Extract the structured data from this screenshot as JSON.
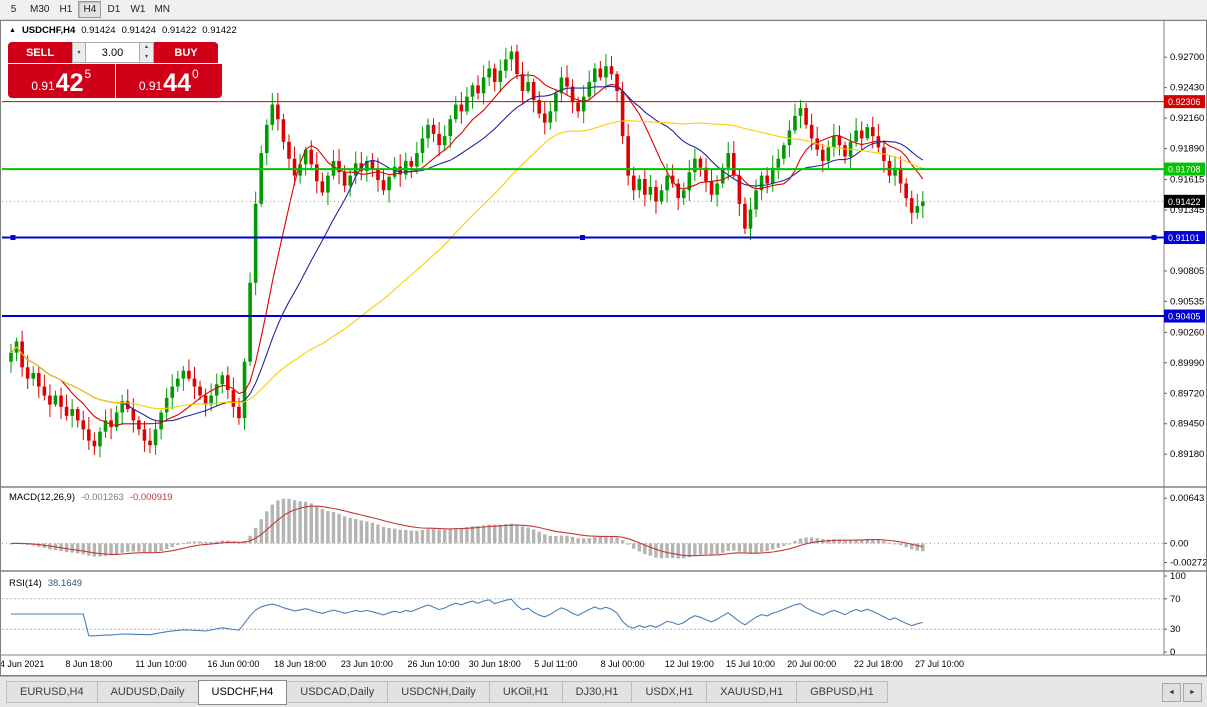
{
  "icons": {
    "triangle-up": "▲",
    "chevron-down": "▾",
    "chevron-up": "▴",
    "scroll-left": "◄",
    "scroll-right": "►"
  },
  "toolbar": {
    "periods": [
      {
        "label": "5",
        "active": false
      },
      {
        "label": "M30",
        "active": false
      },
      {
        "label": "H1",
        "active": false
      },
      {
        "label": "H4",
        "active": true
      },
      {
        "label": "D1",
        "active": false
      },
      {
        "label": "W1",
        "active": false
      },
      {
        "label": "MN",
        "active": false
      }
    ]
  },
  "chart": {
    "title": {
      "symbol": "USDCHF,H4",
      "open": "0.91424",
      "high": "0.91424",
      "low": "0.91422",
      "close": "0.91422"
    },
    "trade_panel": {
      "sell_label": "SELL",
      "buy_label": "BUY",
      "volume": "3.00",
      "sell_price": {
        "small": "0.91",
        "big": "42",
        "sup": "5"
      },
      "buy_price": {
        "small": "0.91",
        "big": "44",
        "sup": "0"
      }
    },
    "colors": {
      "candle_up": "#009b00",
      "candle_down": "#dc0000",
      "ma_fast": "#dd0000",
      "ma_mid": "#26269b",
      "ma_slow": "#ffcc00",
      "macd_hist": "#b4b4b4",
      "macd_signal": "#c03a3a",
      "rsi_line": "#4a7ebb",
      "badge_current": "#000000",
      "current_dotted": "#999999"
    },
    "price_axis": {
      "min": 0.8896,
      "max": 0.9295,
      "ticks": [
        {
          "label": "0.92700",
          "price": 0.927
        },
        {
          "label": "0.92430",
          "price": 0.9243
        },
        {
          "label": "0.92160",
          "price": 0.9216
        },
        {
          "label": "0.91890",
          "price": 0.9189
        },
        {
          "label": "0.91615",
          "price": 0.91615
        },
        {
          "label": "0.91345",
          "price": 0.91345
        },
        {
          "label": "0.91080",
          "price": 0.9108
        },
        {
          "label": "0.90805",
          "price": 0.90805
        },
        {
          "label": "0.90535",
          "price": 0.90535
        },
        {
          "label": "0.90260",
          "price": 0.9026
        },
        {
          "label": "0.89990",
          "price": 0.8999
        },
        {
          "label": "0.89720",
          "price": 0.8972
        },
        {
          "label": "0.89450",
          "price": 0.8945
        },
        {
          "label": "0.89180",
          "price": 0.8918
        }
      ]
    },
    "hlines": [
      {
        "label": "0.92306",
        "price": 0.92306,
        "color": "#d60000",
        "width": 1,
        "selected": false
      },
      {
        "label": "0.91708",
        "price": 0.91708,
        "color": "#00c400",
        "width": 2,
        "selected": false
      },
      {
        "label": "0.91101",
        "price": 0.91101,
        "color": "#0000d4",
        "width": 2,
        "selected": true
      },
      {
        "label": "0.90405",
        "price": 0.90405,
        "color": "#0000d4",
        "width": 2,
        "selected": false
      }
    ],
    "current_price": {
      "label": "0.91422",
      "price": 0.91422
    },
    "candles": {
      "first_open": 0.9,
      "closes": [
        0.9008,
        0.9018,
        0.8995,
        0.8985,
        0.899,
        0.8978,
        0.897,
        0.8962,
        0.897,
        0.896,
        0.8952,
        0.8958,
        0.8948,
        0.894,
        0.893,
        0.8925,
        0.8938,
        0.8948,
        0.8942,
        0.8955,
        0.8965,
        0.8958,
        0.8948,
        0.894,
        0.893,
        0.8926,
        0.894,
        0.8955,
        0.8968,
        0.8978,
        0.8985,
        0.8992,
        0.8985,
        0.8978,
        0.897,
        0.8962,
        0.897,
        0.898,
        0.8988,
        0.8975,
        0.896,
        0.895,
        0.9,
        0.907,
        0.914,
        0.9185,
        0.921,
        0.9228,
        0.9215,
        0.9195,
        0.918,
        0.9165,
        0.9175,
        0.9188,
        0.9175,
        0.916,
        0.915,
        0.9165,
        0.9178,
        0.9168,
        0.9156,
        0.9165,
        0.9176,
        0.9169,
        0.9178,
        0.917,
        0.9161,
        0.9152,
        0.9164,
        0.9173,
        0.9166,
        0.9178,
        0.9173,
        0.9185,
        0.9198,
        0.921,
        0.9202,
        0.9192,
        0.92,
        0.9215,
        0.9228,
        0.9222,
        0.9235,
        0.9245,
        0.9238,
        0.9252,
        0.926,
        0.9248,
        0.9258,
        0.9268,
        0.9275,
        0.9255,
        0.924,
        0.9248,
        0.9232,
        0.922,
        0.9212,
        0.9222,
        0.9238,
        0.9252,
        0.9244,
        0.923,
        0.9222,
        0.9235,
        0.9248,
        0.926,
        0.9252,
        0.9262,
        0.9255,
        0.924,
        0.92,
        0.9165,
        0.9152,
        0.9162,
        0.9148,
        0.9155,
        0.9142,
        0.9152,
        0.9165,
        0.9158,
        0.9145,
        0.9152,
        0.9168,
        0.918,
        0.9172,
        0.916,
        0.9148,
        0.9158,
        0.9172,
        0.9185,
        0.9165,
        0.914,
        0.9118,
        0.9135,
        0.9152,
        0.9165,
        0.9158,
        0.9172,
        0.918,
        0.9192,
        0.9205,
        0.9218,
        0.9225,
        0.921,
        0.9198,
        0.9188,
        0.9178,
        0.919,
        0.92,
        0.9192,
        0.9182,
        0.9195,
        0.9205,
        0.9198,
        0.9208,
        0.92,
        0.919,
        0.9178,
        0.9165,
        0.9172,
        0.9158,
        0.9145,
        0.9132,
        0.9138,
        0.91422
      ]
    },
    "ma": [
      {
        "period": 10
      },
      {
        "period": 21
      },
      {
        "period": 55
      }
    ],
    "time_axis": [
      {
        "label": "4 Jun 2021",
        "index": 2
      },
      {
        "label": "8 Jun 18:00",
        "index": 14
      },
      {
        "label": "11 Jun 10:00",
        "index": 27
      },
      {
        "label": "16 Jun 00:00",
        "index": 40
      },
      {
        "label": "18 Jun 18:00",
        "index": 52
      },
      {
        "label": "23 Jun 10:00",
        "index": 64
      },
      {
        "label": "26 Jun 10:00",
        "index": 76
      },
      {
        "label": "30 Jun 18:00",
        "index": 87
      },
      {
        "label": "5 Jul 11:00",
        "index": 98
      },
      {
        "label": "8 Jul 00:00",
        "index": 110
      },
      {
        "label": "12 Jul 19:00",
        "index": 122
      },
      {
        "label": "15 Jul 10:00",
        "index": 133
      },
      {
        "label": "20 Jul 00:00",
        "index": 144
      },
      {
        "label": "22 Jul 18:00",
        "index": 156
      },
      {
        "label": "27 Jul 10:00",
        "index": 167
      }
    ]
  },
  "macd": {
    "name": "MACD(12,26,9)",
    "value": "-0.001263",
    "signal": "-0.000919",
    "min": -0.0035,
    "max": 0.0076,
    "axis": [
      {
        "label": "0.00643",
        "value": 0.00643
      },
      {
        "label": "0.00",
        "value": 0
      },
      {
        "label": "-0.00272",
        "value": -0.00272
      }
    ]
  },
  "rsi": {
    "name": "RSI(14)",
    "value": "38.1649",
    "axis": [
      {
        "label": "100",
        "value": 100
      },
      {
        "label": "70",
        "value": 70
      },
      {
        "label": "30",
        "value": 30
      },
      {
        "label": "0",
        "value": 0
      }
    ],
    "levels": [
      70,
      30
    ]
  },
  "tabs": {
    "items": [
      {
        "label": "EURUSD,H4",
        "active": false
      },
      {
        "label": "AUDUSD,Daily",
        "active": false
      },
      {
        "label": "USDCHF,H4",
        "active": true
      },
      {
        "label": "USDCAD,Daily",
        "active": false
      },
      {
        "label": "USDCNH,Daily",
        "active": false
      },
      {
        "label": "UKOil,H1",
        "active": false
      },
      {
        "label": "DJ30,H1",
        "active": false
      },
      {
        "label": "USDX,H1",
        "active": false
      },
      {
        "label": "XAUUSD,H1",
        "active": false
      },
      {
        "label": "GBPUSD,H1",
        "active": false
      }
    ]
  }
}
